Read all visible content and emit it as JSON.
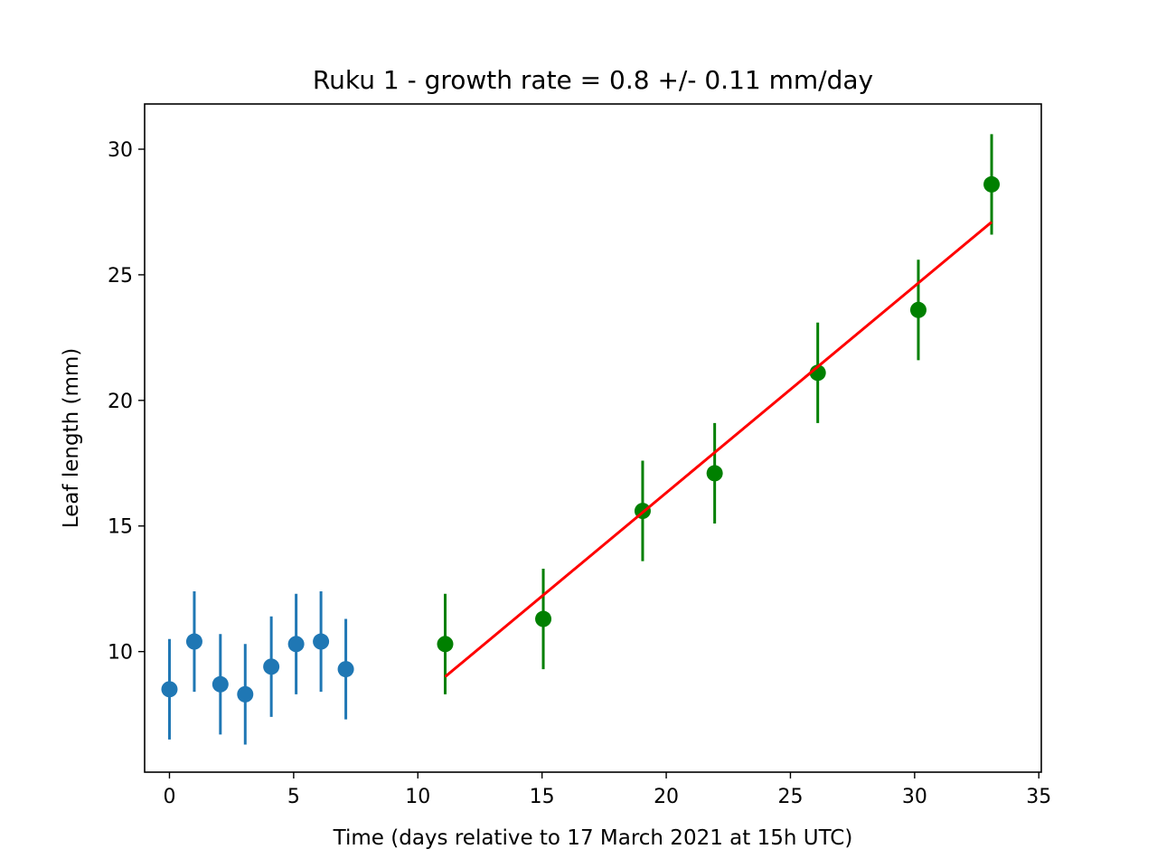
{
  "chart_data": {
    "type": "scatter",
    "title": "Ruku 1  -  growth rate =  0.8 +/- 0.11 mm/day",
    "xlabel": "Time (days relative to 17 March 2021 at 15h UTC)",
    "ylabel": "Leaf length (mm)",
    "xlim": [
      -1,
      35.1
    ],
    "ylim": [
      5.2,
      31.8
    ],
    "xticks": [
      0,
      5,
      10,
      15,
      20,
      25,
      30,
      35
    ],
    "yticks": [
      10,
      15,
      20,
      25,
      30
    ],
    "grid": false,
    "series": [
      {
        "kind": "errorbar",
        "color": "#1f77b4",
        "x": [
          0,
          1,
          2.05,
          3.05,
          4.1,
          5.1,
          6.1,
          7.1
        ],
        "y": [
          8.5,
          10.4,
          8.7,
          8.3,
          9.4,
          10.3,
          10.4,
          9.3
        ],
        "yerr": [
          2,
          2,
          2,
          2,
          2,
          2,
          2,
          2
        ]
      },
      {
        "kind": "errorbar",
        "color": "#008000",
        "x": [
          11.1,
          15.05,
          19.05,
          21.95,
          26.1,
          30.15,
          33.1
        ],
        "y": [
          10.3,
          11.3,
          15.6,
          17.1,
          21.1,
          23.6,
          28.6
        ],
        "yerr": [
          2,
          2,
          2,
          2,
          2,
          2,
          2
        ]
      },
      {
        "kind": "line",
        "color": "#ff0000",
        "x": [
          11.1,
          33.1
        ],
        "y": [
          9.0,
          27.1
        ]
      }
    ]
  }
}
